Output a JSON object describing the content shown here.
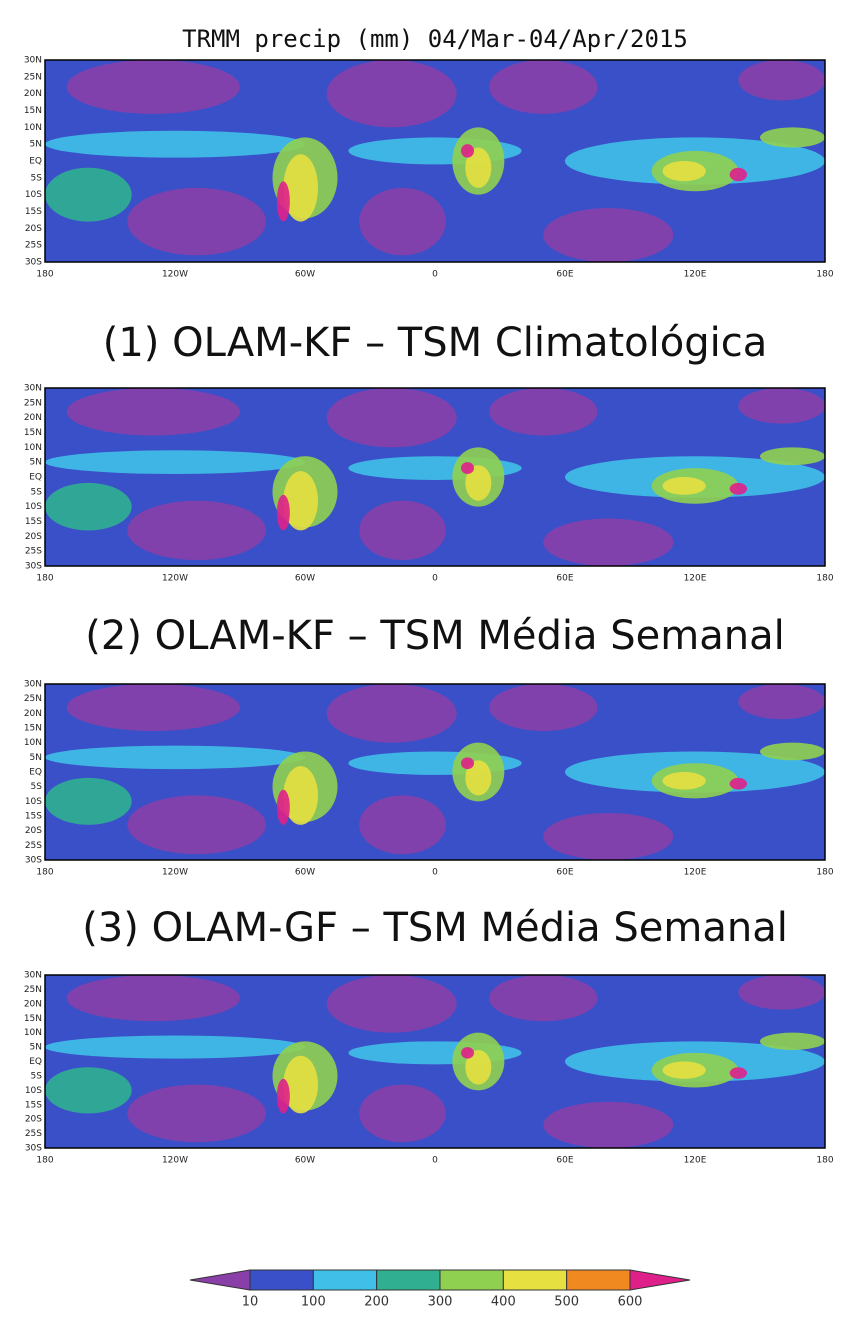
{
  "panels": [
    {
      "title": "TRMM precip (mm) 04/Mar-04/Apr/2015"
    },
    {
      "title": "(1) OLAM-KF – TSM Climatológica"
    },
    {
      "title": "(2) OLAM-KF – TSM Média Semanal"
    },
    {
      "title": "(3) OLAM-GF – TSM Média Semanal"
    }
  ],
  "lat_labels": [
    "30N",
    "25N",
    "20N",
    "15N",
    "10N",
    "5N",
    "EQ",
    "5S",
    "10S",
    "15S",
    "20S",
    "25S",
    "30S"
  ],
  "lon_labels": [
    "180",
    "120W",
    "60W",
    "0",
    "60E",
    "120E",
    "180"
  ],
  "colorbar": {
    "ticks": [
      10,
      100,
      200,
      300,
      400,
      500,
      600
    ],
    "colors": [
      "#8a3fa8",
      "#3a50c8",
      "#40c0e8",
      "#30b090",
      "#90d050",
      "#e6e040",
      "#f08a20",
      "#e0208a"
    ]
  }
}
